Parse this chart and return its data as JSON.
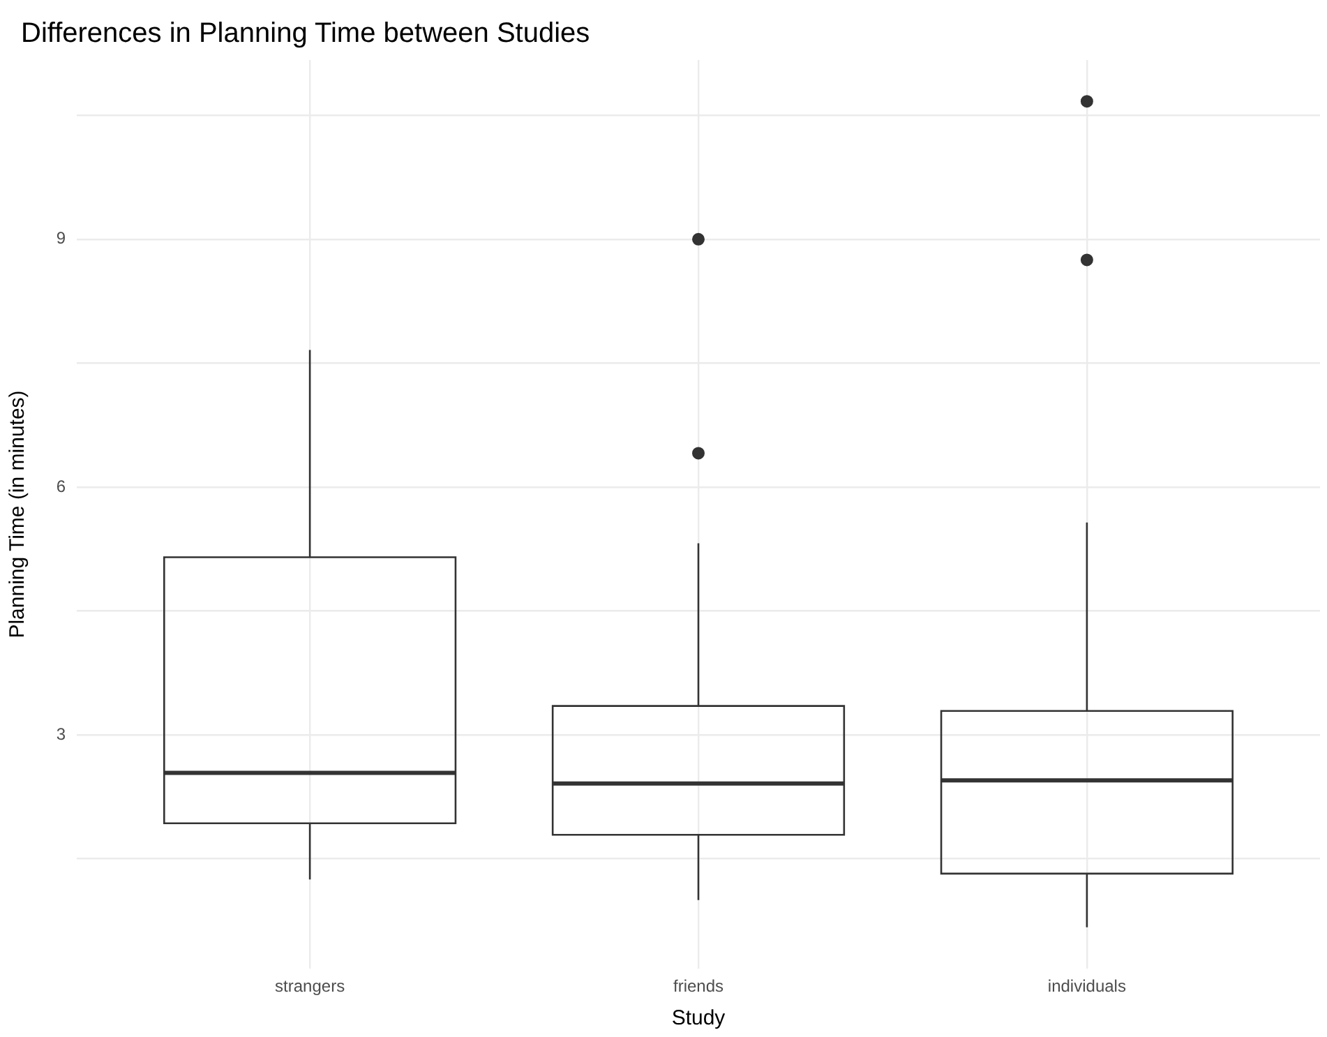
{
  "chart_data": {
    "type": "box",
    "title": "Differences in Planning Time between Studies",
    "xlabel": "Study",
    "ylabel": "Planning Time (in minutes)",
    "categories": [
      "strangers",
      "friends",
      "individuals"
    ],
    "boxes": [
      {
        "low": 1.25,
        "q1": 1.93,
        "median": 2.54,
        "q3": 5.15,
        "high": 7.66
      },
      {
        "low": 1.0,
        "q1": 1.79,
        "median": 2.41,
        "q3": 3.35,
        "high": 5.32,
        "outliers": [
          9.0,
          6.41
        ]
      },
      {
        "low": 0.67,
        "q1": 1.32,
        "median": 2.45,
        "q3": 3.29,
        "high": 5.57,
        "outliers": [
          10.67,
          8.75
        ]
      }
    ],
    "color": "#333333",
    "ylim": [
      0.17,
      11.17
    ],
    "yticks": [
      {
        "value": 1.5,
        "label": null
      },
      3,
      {
        "value": 4.5,
        "label": null
      },
      6,
      {
        "value": 7.5,
        "label": null
      },
      9,
      {
        "value": 10.5,
        "label": null
      }
    ],
    "grid": true,
    "marker": "circle",
    "legend": false
  }
}
